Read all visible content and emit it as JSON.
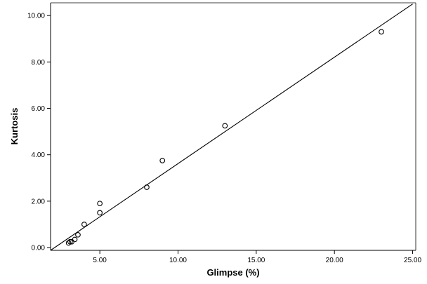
{
  "chart_data": {
    "type": "scatter",
    "title": "",
    "xlabel": "Glimpse (%)",
    "ylabel": "Kurtosis",
    "xlim": [
      1.85,
      25.2
    ],
    "ylim": [
      -0.12,
      10.55
    ],
    "xticks": [
      5,
      10,
      15,
      20,
      25
    ],
    "xtick_labels": [
      "5.00",
      "10.00",
      "15.00",
      "20.00",
      "25.00"
    ],
    "yticks": [
      0,
      2,
      4,
      6,
      8,
      10
    ],
    "ytick_labels": [
      "0.00",
      "2.00",
      "4.00",
      "6.00",
      "8.00",
      "10.00"
    ],
    "grid": false,
    "legend": "none",
    "marker": "open-circle",
    "points": [
      {
        "x": 3.0,
        "y": 0.2
      },
      {
        "x": 3.1,
        "y": 0.25
      },
      {
        "x": 3.2,
        "y": 0.25
      },
      {
        "x": 3.4,
        "y": 0.35
      },
      {
        "x": 3.6,
        "y": 0.55
      },
      {
        "x": 4.0,
        "y": 1.0
      },
      {
        "x": 5.0,
        "y": 1.5
      },
      {
        "x": 5.0,
        "y": 1.9
      },
      {
        "x": 8.0,
        "y": 2.6
      },
      {
        "x": 9.0,
        "y": 3.75
      },
      {
        "x": 13.0,
        "y": 5.25
      },
      {
        "x": 23.0,
        "y": 9.3
      }
    ],
    "fit_line": {
      "type": "linear",
      "from": {
        "x": 1.85,
        "y": -0.12
      },
      "to": {
        "x": 25.0,
        "y": 10.5
      }
    },
    "colors": {
      "axis": "#000000",
      "marker": "#000000",
      "line": "#000000",
      "background": "#ffffff"
    }
  }
}
